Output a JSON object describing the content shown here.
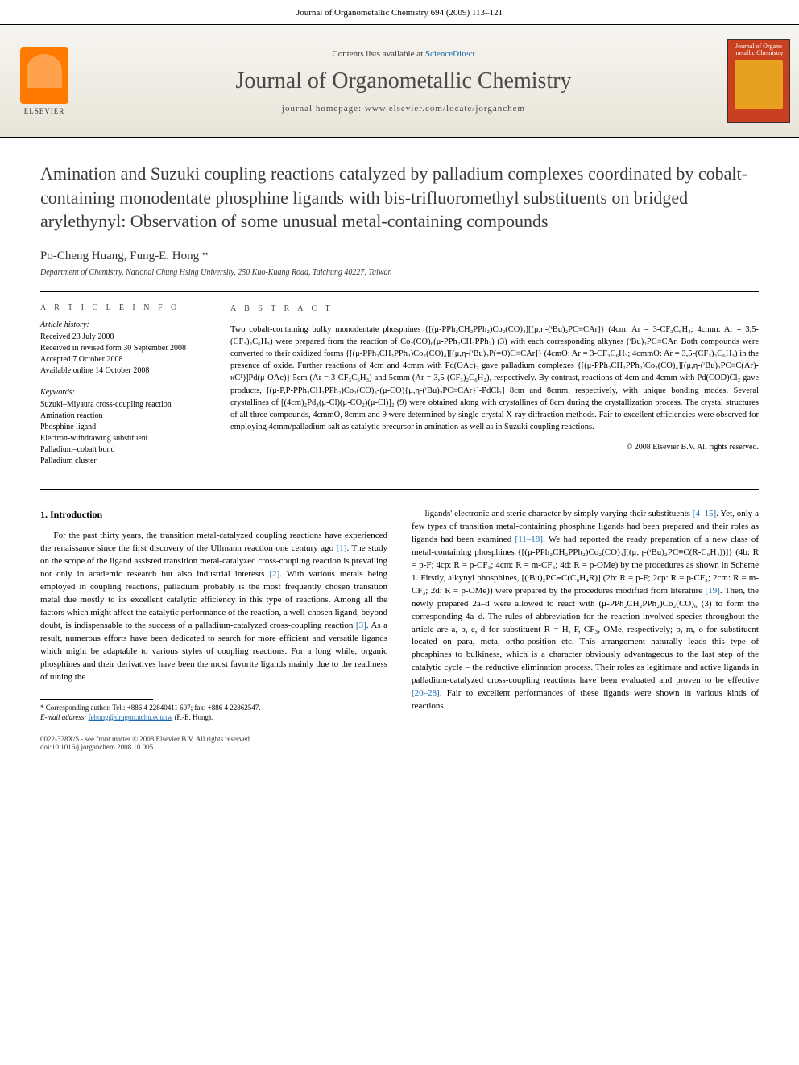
{
  "header": {
    "running": "Journal of Organometallic Chemistry 694 (2009) 113–121"
  },
  "banner": {
    "contents_prefix": "Contents lists available at ",
    "contents_link": "ScienceDirect",
    "journal_name": "Journal of Organometallic Chemistry",
    "homepage_prefix": "journal homepage: ",
    "homepage_url": "www.elsevier.com/locate/jorganchem",
    "elsevier": "ELSEVIER",
    "cover_title": "Journal of Organo metallic Chemistry"
  },
  "article": {
    "title": "Amination and Suzuki coupling reactions catalyzed by palladium complexes coordinated by cobalt-containing monodentate phosphine ligands with bis-trifluoromethyl substituents on bridged arylethynyl: Observation of some unusual metal-containing compounds",
    "authors": "Po-Cheng Huang, Fung-E. Hong *",
    "affiliation": "Department of Chemistry, National Chung Hsing University, 250 Kuo-Kuang Road, Taichung 40227, Taiwan"
  },
  "info": {
    "heading": "A R T I C L E   I N F O",
    "history_label": "Article history:",
    "received": "Received 23 July 2008",
    "revised": "Received in revised form 30 September 2008",
    "accepted": "Accepted 7 October 2008",
    "online": "Available online 14 October 2008",
    "keywords_label": "Keywords:",
    "keywords": [
      "Suzuki–Miyaura cross-coupling reaction",
      "Amination reaction",
      "Phosphine ligand",
      "Electron-withdrawing substituent",
      "Palladium–cobalt bond",
      "Palladium cluster"
    ]
  },
  "abstract": {
    "heading": "A B S T R A C T",
    "body": "Two cobalt-containing bulky monodentate phosphines {[(μ-PPh₂CH₂PPh₂)Co₂(CO)₄][(μ,η-(ᵗBu)₂PC≡CAr]} (4cm: Ar = 3-CF₃C₆H₄; 4cmm: Ar = 3,5-(CF₃)₂C₆H₃) were prepared from the reaction of Co₂(CO)₆(μ-PPh₂CH₂PPh₂) (3) with each corresponding alkynes (ᵗBu)₂PC≡CAr. Both compounds were converted to their oxidized forms {[(μ-PPh₂CH₂PPh₂)Co₂(CO)₄][(μ,η-(ᵗBu)₂P(=O)C≡CAr]} (4cmO: Ar = 3-CF₃C₆H₃; 4cmmO: Ar = 3,5-(CF₃)₂C₆H₃) in the presence of oxide. Further reactions of 4cm and 4cmm with Pd(OAc)₂ gave palladium complexes {[(μ-PPh₂CH₂PPh₂)Co₂(CO)₄][(μ,η-(ᵗBu)₂PC≡C(Ar)-κC¹)]Pd(μ-OAc)} 5cm (Ar = 3-CF₃C₆H₃) and 5cmm (Ar = 3,5-(CF₃)₂C₆H₂), respectively. By contrast, reactions of 4cm and 4cmm with Pd(COD)Cl₂ gave products, [(μ-P,P-PPh₂CH₂PPh₂)Co₂(CO)₃-(μ-CO){μ,η-(ᵗBu)₂PC≡CAr}]-PdCl₂] 8cm and 8cmm, respectively, with unique bonding modes. Several crystallines of [(4cm)₂Pd₃(μ-Cl)(μ-CO₂)(μ-Cl)]₂ (9) were obtained along with crystallines of 8cm during the crystallization process. The crystal structures of all three compounds, 4cmmO, 8cmm and 9 were determined by single-crystal X-ray diffraction methods. Fair to excellent efficiencies were observed for employing 4cmm/palladium salt as catalytic precursor in amination as well as in Suzuki coupling reactions.",
    "copyright": "© 2008 Elsevier B.V. All rights reserved."
  },
  "intro": {
    "heading": "1. Introduction",
    "col1": "For the past thirty years, the transition metal-catalyzed coupling reactions have experienced the renaissance since the first discovery of the Ullmann reaction one century ago [1]. The study on the scope of the ligand assisted transition metal-catalyzed cross-coupling reaction is prevailing not only in academic research but also industrial interests [2]. With various metals being employed in coupling reactions, palladium probably is the most frequently chosen transition metal due mostly to its excellent catalytic efficiency in this type of reactions. Among all the factors which might affect the catalytic performance of the reaction, a well-chosen ligand, beyond doubt, is indispensable to the success of a palladium-catalyzed cross-coupling reaction [3]. As a result, numerous efforts have been dedicated to search for more efficient and versatile ligands which might be adaptable to various styles of coupling reactions. For a long while, organic phosphines and their derivatives have been the most favorite ligands mainly due to the readiness of tuning the",
    "col2": "ligands' electronic and steric character by simply varying their substituents [4–15]. Yet, only a few types of transition metal-containing phosphine ligands had been prepared and their roles as ligands had been examined [11–18]. We had reported the ready preparation of a new class of metal-containing phosphines {[(μ-PPh₂CH₂PPh₂)Co₂(CO)₄][(μ,η-(ᵗBu)₂PC≡C(R-C₆H₄))]} (4b: R = p-F; 4cp: R = p-CF₃; 4cm: R = m-CF₃; 4d: R = p-OMe) by the procedures as shown in Scheme 1. Firstly, alkynyl phosphines, [(ᵗBu)₂PC≡C(C₆H₄R)] (2b: R = p-F; 2cp: R = p-CF₃; 2cm: R = m-CF₃; 2d: R = p-OMe)) were prepared by the procedures modified from literature [19]. Then, the newly prepared 2a–d were allowed to react with (μ-PPh₂CH₂PPh₂)Co₂(CO)₆ (3) to form the corresponding 4a–d. The rules of abbreviation for the reaction involved species throughout the article are a, b, c, d for substituent R = H, F, CF₃, OMe, respectively; p, m, o for substituent located on para, meta, ortho-position etc. This arrangement naturally leads this type of phosphines to bulkiness, which is a character obviously advantageous to the last step of the catalytic cycle – the reductive elimination process. Their roles as legitimate and active ligands in palladium-catalyzed cross-coupling reactions have been evaluated and proven to be effective [20–28]. Fair to excellent performances of these ligands were shown in various kinds of reactions."
  },
  "footnote": {
    "corr": "* Corresponding author. Tel.: +886 4 22840411 607; fax: +886 4 22862547.",
    "email_label": "E-mail address: ",
    "email": "fehong@dragon.nchu.edu.tw",
    "email_suffix": " (F.-E. Hong)."
  },
  "footer": {
    "line1": "0022-328X/$ - see front matter © 2008 Elsevier B.V. All rights reserved.",
    "line2": "doi:10.1016/j.jorganchem.2008.10.005"
  },
  "colors": {
    "link": "#1a6bb3",
    "elsevier_orange": "#ff7a00",
    "cover_bg": "#c84020"
  }
}
